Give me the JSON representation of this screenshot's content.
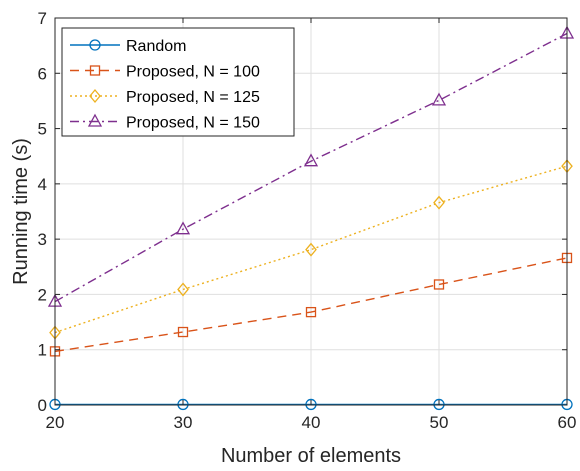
{
  "chart_data": {
    "type": "line",
    "title": "",
    "xlabel": "Number of elements",
    "ylabel": "Running time (s)",
    "xlim": [
      20,
      60
    ],
    "ylim": [
      0,
      7
    ],
    "xticks": [
      20,
      30,
      40,
      50,
      60
    ],
    "yticks": [
      0,
      1,
      2,
      3,
      4,
      5,
      6,
      7
    ],
    "grid": true,
    "legend_position": "top-left",
    "x": [
      20,
      30,
      40,
      50,
      60
    ],
    "series": [
      {
        "name": "Random",
        "values": [
          0.01,
          0.01,
          0.01,
          0.01,
          0.01
        ],
        "color": "#0072BD",
        "marker": "circle",
        "line_style": "solid"
      },
      {
        "name": "Proposed, N = 100",
        "values": [
          0.97,
          1.32,
          1.68,
          2.18,
          2.66
        ],
        "color": "#D95319",
        "marker": "square",
        "line_style": "dashed"
      },
      {
        "name": "Proposed, N = 125",
        "values": [
          1.31,
          2.09,
          2.81,
          3.66,
          4.32
        ],
        "color": "#EDB120",
        "marker": "diamond",
        "line_style": "dotted"
      },
      {
        "name": "Proposed, N = 150",
        "values": [
          1.87,
          3.18,
          4.41,
          5.51,
          6.72
        ],
        "color": "#7E2F8E",
        "marker": "triangle",
        "line_style": "dashdot"
      }
    ]
  }
}
